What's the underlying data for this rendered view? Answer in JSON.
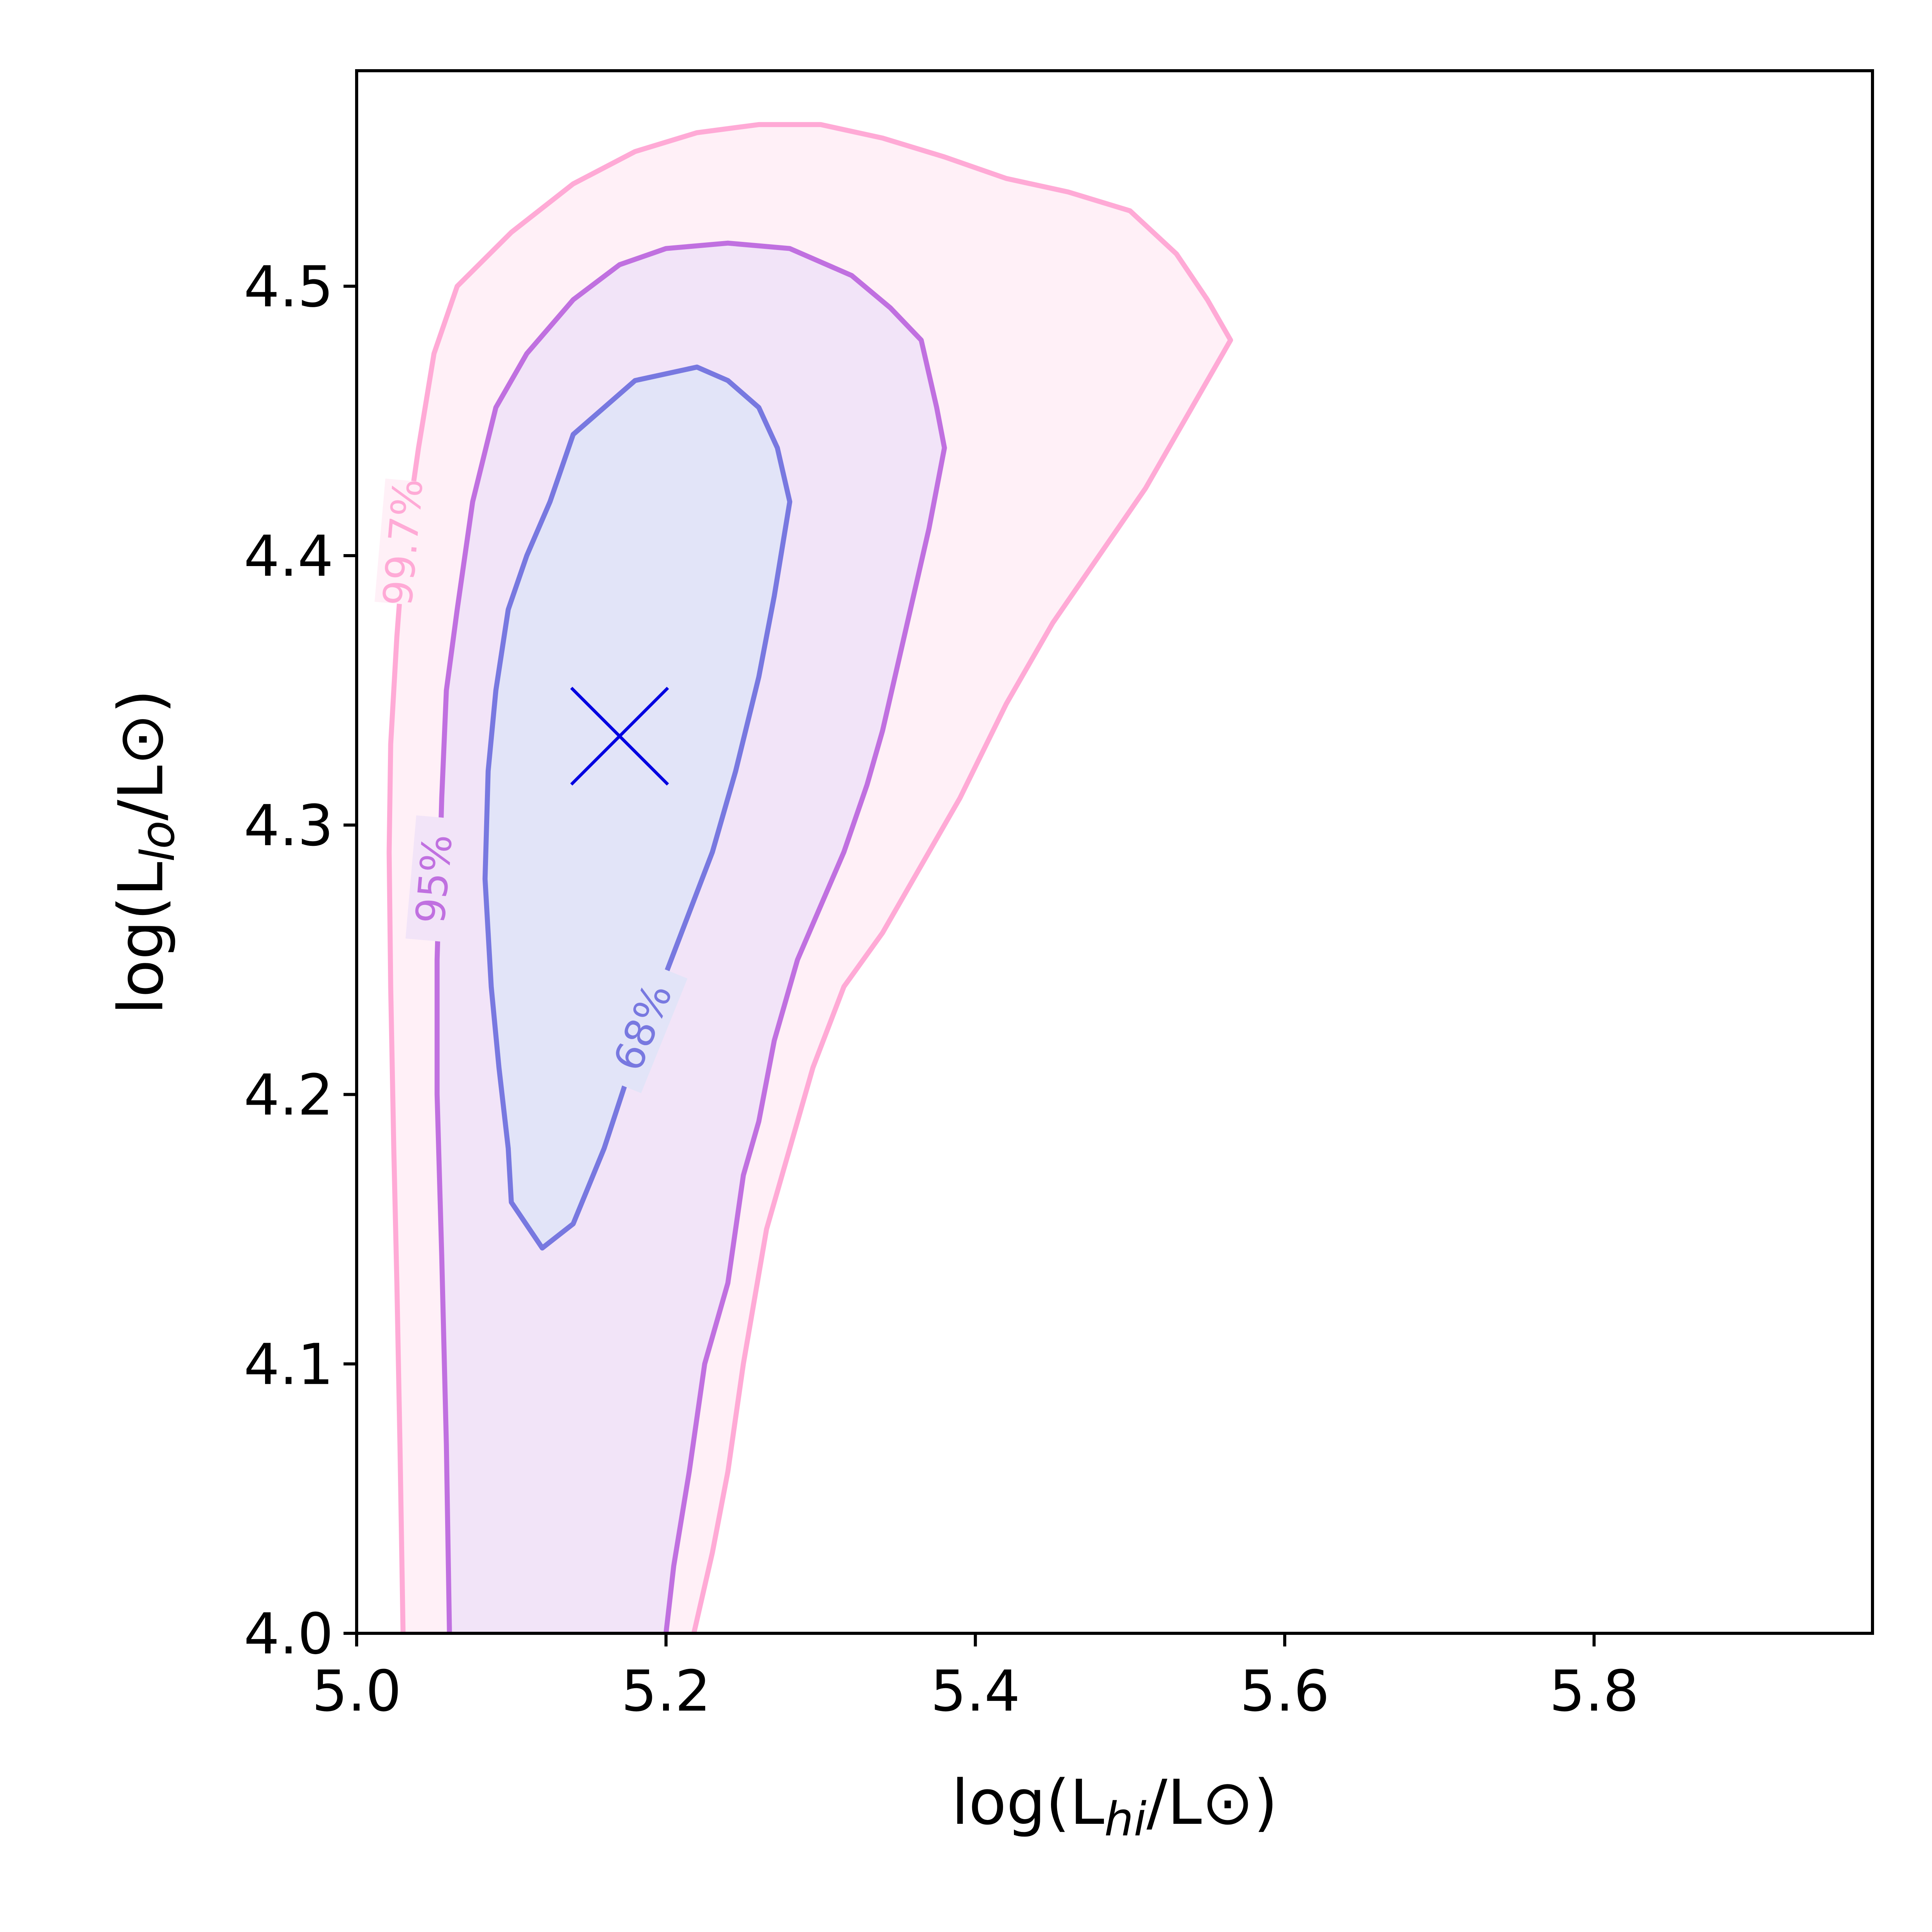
{
  "chart_data": {
    "type": "contour",
    "xlabel": "log(L_hi/L⊙)",
    "ylabel": "log(L_lo/L⊙)",
    "xlabel_parts": [
      "log(L",
      "hi",
      "/L⊙)"
    ],
    "ylabel_parts": [
      "log(L",
      "lo",
      "/L⊙)"
    ],
    "xlim": [
      5.0,
      5.98
    ],
    "ylim": [
      4.0,
      4.58
    ],
    "xticks": [
      {
        "value": 5.0,
        "label": "5.0"
      },
      {
        "value": 5.2,
        "label": "5.2"
      },
      {
        "value": 5.4,
        "label": "5.4"
      },
      {
        "value": 5.6,
        "label": "5.6"
      },
      {
        "value": 5.8,
        "label": "5.8"
      }
    ],
    "yticks": [
      {
        "value": 4.0,
        "label": "4.0"
      },
      {
        "value": 4.1,
        "label": "4.1"
      },
      {
        "value": 4.2,
        "label": "4.2"
      },
      {
        "value": 4.3,
        "label": "4.3"
      },
      {
        "value": 4.4,
        "label": "4.4"
      },
      {
        "value": 4.5,
        "label": "4.5"
      }
    ],
    "grid": false,
    "marker": {
      "symbol": "x",
      "x": 5.17,
      "y": 4.333,
      "color": "#0000e0"
    },
    "contours": [
      {
        "label": "99.7%",
        "color": "#ffaad6",
        "fill": "#fff0f7",
        "label_at": {
          "x": 5.03,
          "y": 4.405
        },
        "points": [
          [
            5.03,
            4.0
          ],
          [
            5.028,
            4.07
          ],
          [
            5.026,
            4.13
          ],
          [
            5.024,
            4.18
          ],
          [
            5.022,
            4.24
          ],
          [
            5.021,
            4.29
          ],
          [
            5.022,
            4.33
          ],
          [
            5.026,
            4.37
          ],
          [
            5.03,
            4.4
          ],
          [
            5.04,
            4.44
          ],
          [
            5.05,
            4.475
          ],
          [
            5.065,
            4.5
          ],
          [
            5.1,
            4.52
          ],
          [
            5.14,
            4.538
          ],
          [
            5.18,
            4.55
          ],
          [
            5.22,
            4.557
          ],
          [
            5.26,
            4.56
          ],
          [
            5.3,
            4.56
          ],
          [
            5.34,
            4.555
          ],
          [
            5.38,
            4.548
          ],
          [
            5.42,
            4.54
          ],
          [
            5.46,
            4.535
          ],
          [
            5.5,
            4.528
          ],
          [
            5.53,
            4.512
          ],
          [
            5.55,
            4.495
          ],
          [
            5.565,
            4.48
          ],
          [
            5.54,
            4.455
          ],
          [
            5.51,
            4.425
          ],
          [
            5.48,
            4.4
          ],
          [
            5.45,
            4.375
          ],
          [
            5.42,
            4.345
          ],
          [
            5.39,
            4.31
          ],
          [
            5.36,
            4.28
          ],
          [
            5.34,
            4.26
          ],
          [
            5.315,
            4.24
          ],
          [
            5.295,
            4.21
          ],
          [
            5.28,
            4.18
          ],
          [
            5.265,
            4.15
          ],
          [
            5.25,
            4.1
          ],
          [
            5.24,
            4.06
          ],
          [
            5.23,
            4.03
          ],
          [
            5.218,
            4.0
          ]
        ]
      },
      {
        "label": "95%",
        "color": "#c070e0",
        "fill": "#f2e4f8",
        "label_at": {
          "x": 5.05,
          "y": 4.28
        },
        "points": [
          [
            5.06,
            4.0
          ],
          [
            5.058,
            4.07
          ],
          [
            5.055,
            4.14
          ],
          [
            5.052,
            4.2
          ],
          [
            5.052,
            4.25
          ],
          [
            5.055,
            4.31
          ],
          [
            5.058,
            4.35
          ],
          [
            5.065,
            4.38
          ],
          [
            5.075,
            4.42
          ],
          [
            5.09,
            4.455
          ],
          [
            5.11,
            4.475
          ],
          [
            5.14,
            4.495
          ],
          [
            5.17,
            4.508
          ],
          [
            5.2,
            4.514
          ],
          [
            5.24,
            4.516
          ],
          [
            5.28,
            4.514
          ],
          [
            5.32,
            4.504
          ],
          [
            5.345,
            4.492
          ],
          [
            5.365,
            4.48
          ],
          [
            5.375,
            4.455
          ],
          [
            5.38,
            4.44
          ],
          [
            5.37,
            4.41
          ],
          [
            5.36,
            4.385
          ],
          [
            5.35,
            4.36
          ],
          [
            5.34,
            4.335
          ],
          [
            5.33,
            4.315
          ],
          [
            5.315,
            4.29
          ],
          [
            5.3,
            4.27
          ],
          [
            5.285,
            4.25
          ],
          [
            5.27,
            4.22
          ],
          [
            5.26,
            4.19
          ],
          [
            5.25,
            4.17
          ],
          [
            5.24,
            4.13
          ],
          [
            5.225,
            4.1
          ],
          [
            5.215,
            4.06
          ],
          [
            5.205,
            4.025
          ],
          [
            5.2,
            4.0
          ]
        ]
      },
      {
        "label": "68%",
        "color": "#7878e0",
        "fill": "#e2e4f8",
        "label_at": {
          "x": 5.185,
          "y": 4.225
        },
        "points": [
          [
            5.12,
            4.143
          ],
          [
            5.14,
            4.152
          ],
          [
            5.16,
            4.18
          ],
          [
            5.18,
            4.215
          ],
          [
            5.21,
            4.26
          ],
          [
            5.23,
            4.29
          ],
          [
            5.245,
            4.32
          ],
          [
            5.26,
            4.355
          ],
          [
            5.27,
            4.385
          ],
          [
            5.28,
            4.42
          ],
          [
            5.272,
            4.44
          ],
          [
            5.26,
            4.455
          ],
          [
            5.24,
            4.465
          ],
          [
            5.22,
            4.47
          ],
          [
            5.18,
            4.465
          ],
          [
            5.16,
            4.455
          ],
          [
            5.14,
            4.445
          ],
          [
            5.125,
            4.42
          ],
          [
            5.11,
            4.4
          ],
          [
            5.098,
            4.38
          ],
          [
            5.09,
            4.35
          ],
          [
            5.085,
            4.32
          ],
          [
            5.083,
            4.28
          ],
          [
            5.087,
            4.24
          ],
          [
            5.092,
            4.21
          ],
          [
            5.098,
            4.18
          ],
          [
            5.1,
            4.16
          ]
        ]
      }
    ]
  }
}
